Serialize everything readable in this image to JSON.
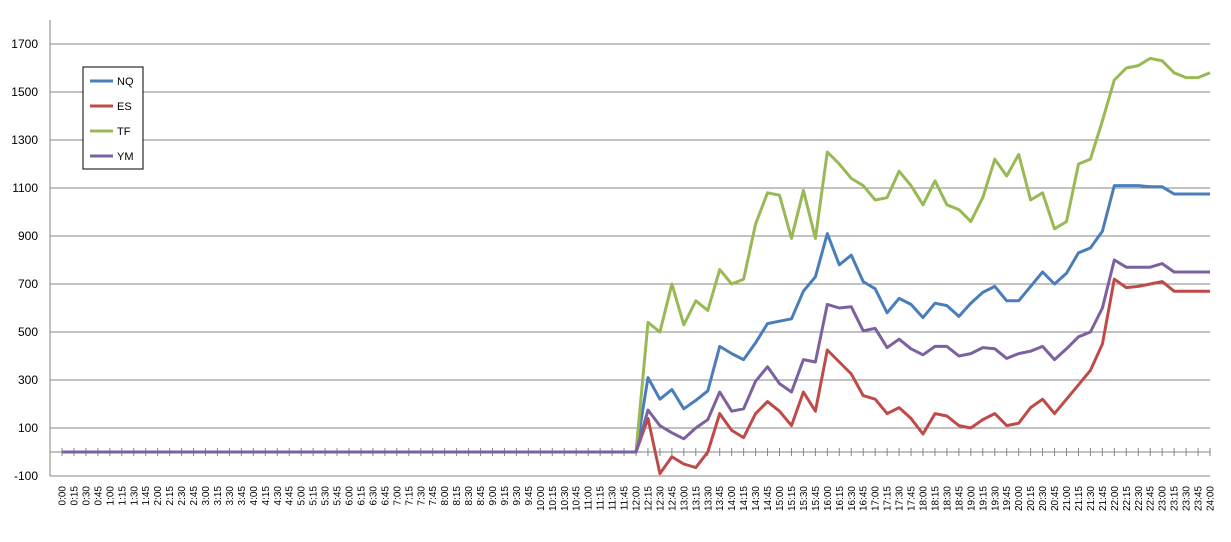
{
  "chart_data": {
    "type": "line",
    "title": "",
    "xlabel": "",
    "ylabel": "",
    "ylim": [
      -100,
      1800
    ],
    "yticks": [
      -100,
      100,
      300,
      500,
      700,
      900,
      1100,
      1300,
      1500,
      1700
    ],
    "grid": "horizontal",
    "legend_position": "left",
    "x": [
      "0:00",
      "0:15",
      "0:30",
      "0:45",
      "1:00",
      "1:15",
      "1:30",
      "1:45",
      "2:00",
      "2:15",
      "2:30",
      "2:45",
      "3:00",
      "3:15",
      "3:30",
      "3:45",
      "4:00",
      "4:15",
      "4:30",
      "4:45",
      "5:00",
      "5:15",
      "5:30",
      "5:45",
      "6:00",
      "6:15",
      "6:30",
      "6:45",
      "7:00",
      "7:15",
      "7:30",
      "7:45",
      "8:00",
      "8:15",
      "8:30",
      "8:45",
      "9:00",
      "9:15",
      "9:30",
      "9:45",
      "10:00",
      "10:15",
      "10:30",
      "10:45",
      "11:00",
      "11:15",
      "11:30",
      "11:45",
      "12:00",
      "12:15",
      "12:30",
      "12:45",
      "13:00",
      "13:15",
      "13:30",
      "13:45",
      "14:00",
      "14:15",
      "14:30",
      "14:45",
      "15:00",
      "15:15",
      "15:30",
      "15:45",
      "16:00",
      "16:15",
      "16:30",
      "16:45",
      "17:00",
      "17:15",
      "17:30",
      "17:45",
      "18:00",
      "18:15",
      "18:30",
      "18:45",
      "19:00",
      "19:15",
      "19:30",
      "19:45",
      "20:00",
      "20:15",
      "20:30",
      "20:45",
      "21:00",
      "21:15",
      "21:30",
      "21:45",
      "22:00",
      "22:15",
      "22:30",
      "22:45",
      "23:00",
      "23:15",
      "23:30",
      "23:45",
      "24:00"
    ],
    "series": [
      {
        "name": "NQ",
        "color": "#4a7ebb",
        "values": [
          0,
          0,
          0,
          0,
          0,
          0,
          0,
          0,
          0,
          0,
          0,
          0,
          0,
          0,
          0,
          0,
          0,
          0,
          0,
          0,
          0,
          0,
          0,
          0,
          0,
          0,
          0,
          0,
          0,
          0,
          0,
          0,
          0,
          0,
          0,
          0,
          0,
          0,
          0,
          0,
          0,
          0,
          0,
          0,
          0,
          0,
          0,
          0,
          0,
          310,
          220,
          260,
          180,
          215,
          255,
          440,
          410,
          385,
          455,
          535,
          545,
          555,
          670,
          730,
          910,
          780,
          820,
          710,
          680,
          580,
          640,
          615,
          560,
          620,
          610,
          565,
          620,
          665,
          690,
          630,
          630,
          690,
          750,
          700,
          745,
          830,
          850,
          920,
          1110,
          1110,
          1110,
          1105,
          1105,
          1075,
          1075,
          1075,
          1075
        ]
      },
      {
        "name": "ES",
        "color": "#be4b48",
        "values": [
          0,
          0,
          0,
          0,
          0,
          0,
          0,
          0,
          0,
          0,
          0,
          0,
          0,
          0,
          0,
          0,
          0,
          0,
          0,
          0,
          0,
          0,
          0,
          0,
          0,
          0,
          0,
          0,
          0,
          0,
          0,
          0,
          0,
          0,
          0,
          0,
          0,
          0,
          0,
          0,
          0,
          0,
          0,
          0,
          0,
          0,
          0,
          0,
          0,
          140,
          -90,
          -20,
          -50,
          -65,
          0,
          160,
          90,
          60,
          160,
          210,
          170,
          110,
          250,
          170,
          425,
          375,
          325,
          235,
          220,
          160,
          185,
          140,
          75,
          160,
          150,
          110,
          100,
          135,
          160,
          110,
          120,
          185,
          220,
          160,
          220,
          280,
          340,
          450,
          720,
          685,
          690,
          700,
          710,
          670,
          670,
          670,
          670
        ]
      },
      {
        "name": "TF",
        "color": "#98b954",
        "values": [
          0,
          0,
          0,
          0,
          0,
          0,
          0,
          0,
          0,
          0,
          0,
          0,
          0,
          0,
          0,
          0,
          0,
          0,
          0,
          0,
          0,
          0,
          0,
          0,
          0,
          0,
          0,
          0,
          0,
          0,
          0,
          0,
          0,
          0,
          0,
          0,
          0,
          0,
          0,
          0,
          0,
          0,
          0,
          0,
          0,
          0,
          0,
          0,
          0,
          540,
          500,
          700,
          530,
          630,
          590,
          760,
          700,
          720,
          950,
          1080,
          1070,
          890,
          1090,
          890,
          1250,
          1200,
          1140,
          1110,
          1050,
          1060,
          1170,
          1110,
          1030,
          1130,
          1030,
          1010,
          960,
          1060,
          1220,
          1150,
          1240,
          1050,
          1080,
          930,
          960,
          1200,
          1220,
          1380,
          1550,
          1600,
          1610,
          1640,
          1630,
          1580,
          1560,
          1560,
          1580
        ]
      },
      {
        "name": "YM",
        "color": "#7d60a0",
        "values": [
          0,
          0,
          0,
          0,
          0,
          0,
          0,
          0,
          0,
          0,
          0,
          0,
          0,
          0,
          0,
          0,
          0,
          0,
          0,
          0,
          0,
          0,
          0,
          0,
          0,
          0,
          0,
          0,
          0,
          0,
          0,
          0,
          0,
          0,
          0,
          0,
          0,
          0,
          0,
          0,
          0,
          0,
          0,
          0,
          0,
          0,
          0,
          0,
          0,
          175,
          110,
          80,
          55,
          100,
          135,
          250,
          170,
          180,
          295,
          355,
          285,
          250,
          385,
          375,
          615,
          600,
          605,
          505,
          515,
          435,
          470,
          430,
          405,
          440,
          440,
          400,
          410,
          435,
          430,
          390,
          410,
          420,
          440,
          385,
          430,
          480,
          500,
          600,
          800,
          770,
          770,
          770,
          785,
          750,
          750,
          750,
          750
        ]
      }
    ]
  }
}
